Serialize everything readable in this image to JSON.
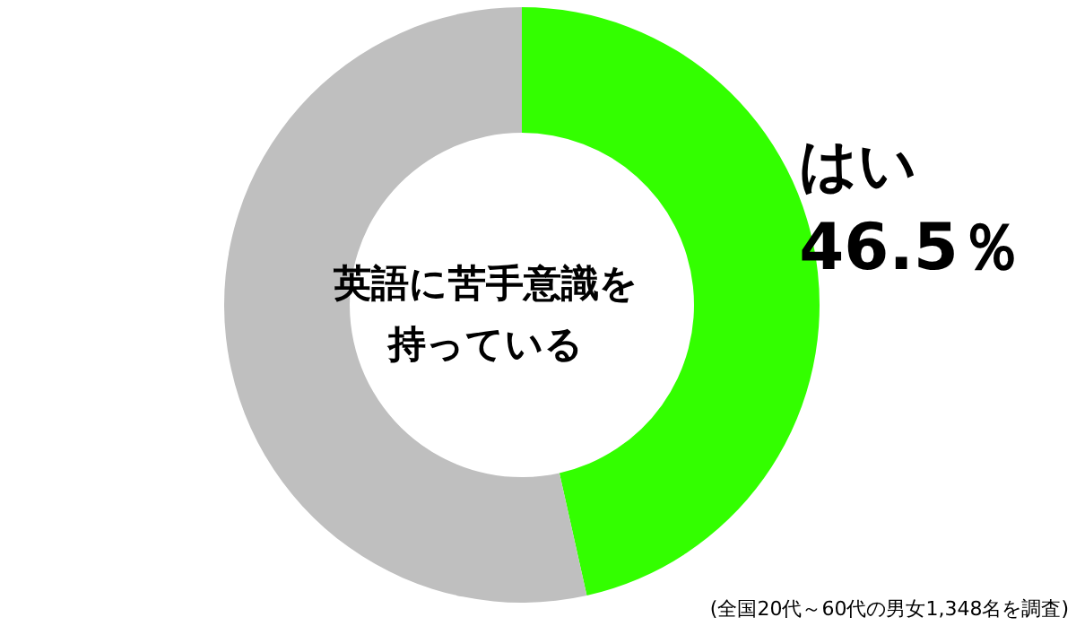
{
  "chart_data": {
    "type": "donut",
    "title": "英語に苦手意識を持っている",
    "categories": [
      "はい",
      null
    ],
    "values": [
      46.5,
      53.5
    ],
    "colors": [
      "#33ff00",
      "#bfbfbf"
    ],
    "value_labels": [
      "46.5％",
      null
    ],
    "annotations": [
      "(全国20代～60代の男女1,348名を調査)"
    ]
  }
}
